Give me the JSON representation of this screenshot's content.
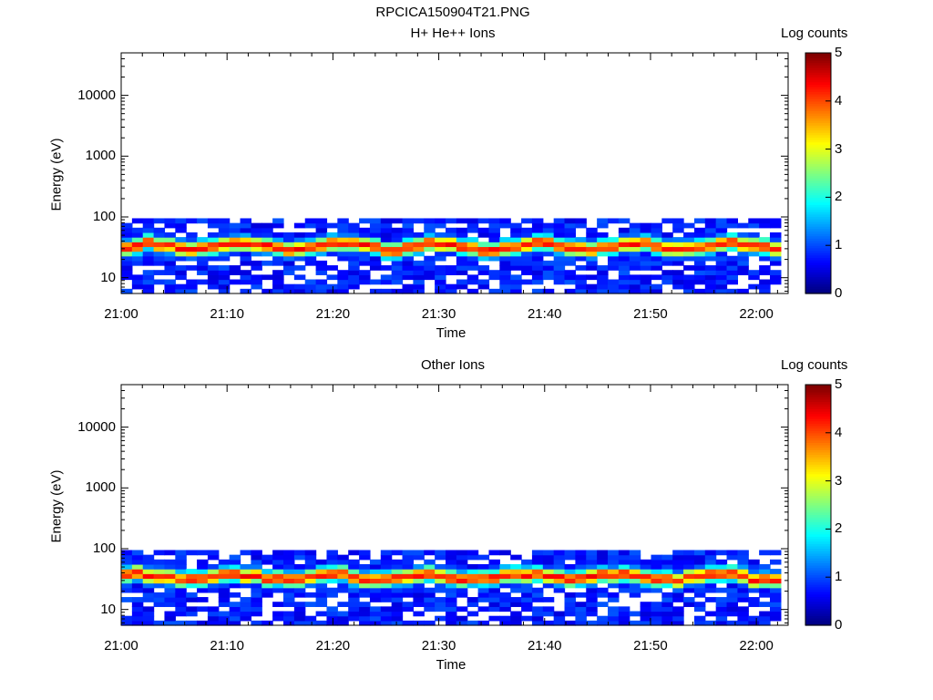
{
  "figure_title": "RPCICA150904T21.PNG",
  "panels": [
    {
      "title": "H+ He++ Ions",
      "ylabel": "Energy (eV)",
      "xlabel": "Time",
      "colorbar_label": "Log counts"
    },
    {
      "title": "Other Ions",
      "ylabel": "Energy (eV)",
      "xlabel": "Time",
      "colorbar_label": "Log counts"
    }
  ],
  "chart_data": [
    {
      "type": "heatmap",
      "title": "H+ He++ Ions",
      "xlabel": "Time",
      "ylabel": "Energy (eV)",
      "x_ticks": [
        "21:00",
        "21:10",
        "21:20",
        "21:30",
        "21:40",
        "21:50",
        "22:00"
      ],
      "x_range_minutes": [
        0,
        63
      ],
      "y_scale": "log",
      "y_ticks": [
        "10",
        "100",
        "1000",
        "10000"
      ],
      "y_range": [
        5.5,
        50000
      ],
      "colorbar": {
        "label": "Log counts",
        "range": [
          0,
          5
        ],
        "ticks": [
          "0",
          "1",
          "2",
          "3",
          "4",
          "5"
        ],
        "colormap": "jet"
      },
      "band": {
        "energy_min": 5.5,
        "energy_max": 95,
        "peak_energy": 33,
        "peak_log_counts": 4.2
      }
    },
    {
      "type": "heatmap",
      "title": "Other Ions",
      "xlabel": "Time",
      "ylabel": "Energy (eV)",
      "x_ticks": [
        "21:00",
        "21:10",
        "21:20",
        "21:30",
        "21:40",
        "21:50",
        "22:00"
      ],
      "x_range_minutes": [
        0,
        63
      ],
      "y_scale": "log",
      "y_ticks": [
        "10",
        "100",
        "1000",
        "10000"
      ],
      "y_range": [
        5.5,
        50000
      ],
      "colorbar": {
        "label": "Log counts",
        "range": [
          0,
          5
        ],
        "ticks": [
          "0",
          "1",
          "2",
          "3",
          "4",
          "5"
        ],
        "colormap": "jet"
      },
      "band": {
        "energy_min": 5.5,
        "energy_max": 95,
        "peak_energy": 35,
        "peak_log_counts": 4.2
      }
    }
  ]
}
